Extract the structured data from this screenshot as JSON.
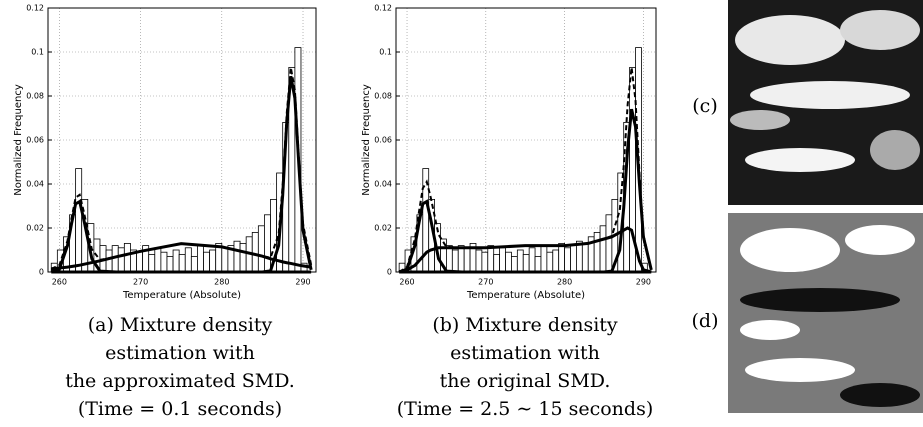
{
  "chart_data": [
    {
      "type": "histogram",
      "x_label": "Temperature (Absolute)",
      "y_label": "Normalized Frequency",
      "caption": [
        "(a) Mixture density",
        "estimation with",
        "the approximated SMD.",
        "(Time = 0.1 seconds)"
      ],
      "xlim": [
        258.6,
        291.6
      ],
      "xticks": [
        260,
        270,
        280,
        290
      ],
      "ylim": [
        0,
        0.12
      ],
      "yticks": [
        0,
        0.02,
        0.04,
        0.06,
        0.08,
        0.1,
        0.12
      ],
      "grid": true,
      "bins": [
        259,
        259.75,
        260.5,
        261.25,
        262,
        262.75,
        263.5,
        264.25,
        265,
        265.75,
        266.5,
        267.25,
        268,
        268.75,
        269.5,
        270.25,
        271,
        271.75,
        272.5,
        273.25,
        274,
        274.75,
        275.5,
        276.25,
        277,
        277.75,
        278.5,
        279.25,
        280,
        280.75,
        281.5,
        282.25,
        283,
        283.75,
        284.5,
        285.25,
        286,
        286.75,
        287.5,
        288.25,
        289,
        289.75,
        290.5
      ],
      "values": [
        0.004,
        0.01,
        0.016,
        0.026,
        0.047,
        0.033,
        0.022,
        0.015,
        0.012,
        0.01,
        0.012,
        0.011,
        0.013,
        0.01,
        0.009,
        0.012,
        0.008,
        0.011,
        0.009,
        0.007,
        0.01,
        0.008,
        0.011,
        0.007,
        0.012,
        0.009,
        0.01,
        0.013,
        0.011,
        0.012,
        0.014,
        0.013,
        0.016,
        0.018,
        0.021,
        0.026,
        0.033,
        0.045,
        0.068,
        0.093,
        0.102,
        0.004
      ],
      "curve_x": [
        259,
        260,
        261,
        261.5,
        262,
        262.5,
        263,
        264,
        265,
        267,
        270,
        275,
        280,
        283,
        285,
        286,
        287,
        287.5,
        288,
        288.5,
        289,
        289.5,
        290,
        291
      ],
      "curves": [
        {
          "style": "solid",
          "width": 3,
          "values": [
            0,
            0.0013,
            0.012,
            0.022,
            0.031,
            0.032,
            0.024,
            0.006,
            0.0004,
            0,
            0,
            0,
            0,
            0,
            0,
            0,
            0,
            0,
            0,
            0,
            0,
            0,
            0,
            0
          ]
        },
        {
          "style": "solid",
          "width": 3,
          "values": [
            0.0014,
            0.0018,
            0.0022,
            0.0025,
            0.0028,
            0.0031,
            0.0035,
            0.0043,
            0.0051,
            0.0069,
            0.0094,
            0.0129,
            0.0114,
            0.0089,
            0.0072,
            0.006,
            0.0051,
            0.0046,
            0.0042,
            0.0039,
            0.0035,
            0.0031,
            0.0028,
            0.0022
          ]
        },
        {
          "style": "solid",
          "width": 3,
          "values": [
            0,
            0,
            0,
            0,
            0,
            0,
            0,
            0,
            0,
            0,
            0,
            0,
            0,
            0,
            0,
            0.0005,
            0.012,
            0.035,
            0.068,
            0.089,
            0.079,
            0.048,
            0.019,
            0.001
          ]
        },
        {
          "style": "dashed",
          "width": 2,
          "values": [
            0.0014,
            0.0031,
            0.0142,
            0.0245,
            0.0338,
            0.0351,
            0.0275,
            0.0103,
            0.0055,
            0.0069,
            0.0094,
            0.0129,
            0.0114,
            0.0089,
            0.0072,
            0.0065,
            0.0171,
            0.0396,
            0.0722,
            0.0929,
            0.0825,
            0.0511,
            0.0218,
            0.0032
          ]
        }
      ]
    },
    {
      "type": "histogram",
      "x_label": "Temperature (Absolute)",
      "y_label": "Normalized Frequency",
      "caption": [
        "(b) Mixture density",
        "estimation with",
        "the original SMD.",
        "(Time = 2.5 ∼ 15 seconds)"
      ],
      "xlim": [
        258.6,
        291.6
      ],
      "xticks": [
        260,
        270,
        280,
        290
      ],
      "ylim": [
        0,
        0.12
      ],
      "yticks": [
        0,
        0.02,
        0.04,
        0.06,
        0.08,
        0.1,
        0.12
      ],
      "grid": true,
      "bins": [
        259,
        259.75,
        260.5,
        261.25,
        262,
        262.75,
        263.5,
        264.25,
        265,
        265.75,
        266.5,
        267.25,
        268,
        268.75,
        269.5,
        270.25,
        271,
        271.75,
        272.5,
        273.25,
        274,
        274.75,
        275.5,
        276.25,
        277,
        277.75,
        278.5,
        279.25,
        280,
        280.75,
        281.5,
        282.25,
        283,
        283.75,
        284.5,
        285.25,
        286,
        286.75,
        287.5,
        288.25,
        289,
        289.75,
        290.5
      ],
      "values": [
        0.004,
        0.01,
        0.016,
        0.026,
        0.047,
        0.033,
        0.022,
        0.015,
        0.012,
        0.01,
        0.012,
        0.011,
        0.013,
        0.01,
        0.009,
        0.012,
        0.008,
        0.011,
        0.009,
        0.007,
        0.01,
        0.008,
        0.011,
        0.007,
        0.012,
        0.009,
        0.01,
        0.013,
        0.011,
        0.012,
        0.014,
        0.013,
        0.016,
        0.018,
        0.021,
        0.026,
        0.033,
        0.045,
        0.068,
        0.093,
        0.102,
        0.004
      ],
      "curve_x": [
        259,
        260,
        261,
        261.5,
        262,
        262.5,
        263,
        264,
        265,
        267,
        270,
        275,
        280,
        283,
        285,
        286,
        287,
        287.5,
        288,
        288.5,
        289,
        289.5,
        290,
        291
      ],
      "curves": [
        {
          "style": "solid",
          "width": 3,
          "values": [
            0,
            0.0013,
            0.012,
            0.022,
            0.031,
            0.032,
            0.024,
            0.006,
            0.0004,
            0,
            0,
            0,
            0,
            0,
            0,
            0,
            0,
            0,
            0,
            0,
            0,
            0,
            0,
            0
          ]
        },
        {
          "style": "solid",
          "width": 3,
          "values": [
            0,
            0.001,
            0.003,
            0.005,
            0.007,
            0.009,
            0.01,
            0.011,
            0.011,
            0.011,
            0.011,
            0.012,
            0.012,
            0.013,
            0.015,
            0.016,
            0.018,
            0.019,
            0.02,
            0.019,
            0.012,
            0.005,
            0.001,
            0
          ]
        },
        {
          "style": "solid",
          "width": 3,
          "values": [
            0,
            0,
            0,
            0,
            0,
            0,
            0,
            0,
            0,
            0,
            0,
            0,
            0,
            0,
            0,
            0.0004,
            0.01,
            0.029,
            0.056,
            0.074,
            0.066,
            0.04,
            0.016,
            0.001
          ]
        },
        {
          "style": "dashed",
          "width": 2,
          "values": [
            0,
            0.0023,
            0.015,
            0.027,
            0.038,
            0.041,
            0.034,
            0.017,
            0.0114,
            0.011,
            0.011,
            0.012,
            0.012,
            0.013,
            0.015,
            0.0164,
            0.028,
            0.048,
            0.076,
            0.093,
            0.078,
            0.045,
            0.017,
            0.001
          ]
        }
      ]
    }
  ],
  "images": [
    {
      "label": "(c)"
    },
    {
      "label": "(d)"
    }
  ]
}
